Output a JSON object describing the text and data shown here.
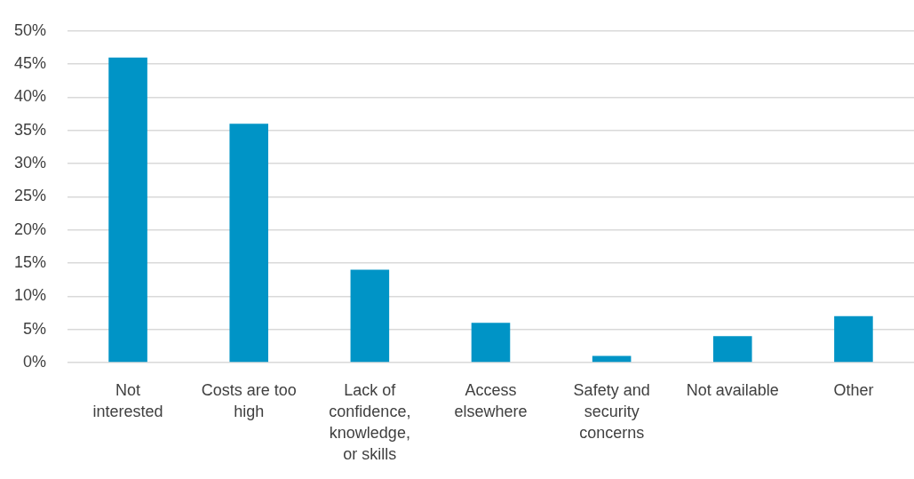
{
  "chart_data": {
    "type": "bar",
    "categories": [
      "Not interested",
      "Costs are too high",
      "Lack of confidence, knowledge, or skills",
      "Access elsewhere",
      "Safety and security concerns",
      "Not available",
      "Other"
    ],
    "values": [
      46,
      36,
      14,
      6,
      1,
      4,
      7
    ],
    "color": "#0094c6",
    "ylim": [
      0,
      50
    ],
    "yticks": [
      {
        "value": 0,
        "label": "0%"
      },
      {
        "value": 5,
        "label": "5%"
      },
      {
        "value": 10,
        "label": "10%"
      },
      {
        "value": 15,
        "label": "15%"
      },
      {
        "value": 20,
        "label": "20%"
      },
      {
        "value": 25,
        "label": "25%"
      },
      {
        "value": 30,
        "label": "30%"
      },
      {
        "value": 35,
        "label": "35%"
      },
      {
        "value": 40,
        "label": "40%"
      },
      {
        "value": 45,
        "label": "45%"
      },
      {
        "value": 50,
        "label": "50%"
      }
    ],
    "grid": "y"
  }
}
